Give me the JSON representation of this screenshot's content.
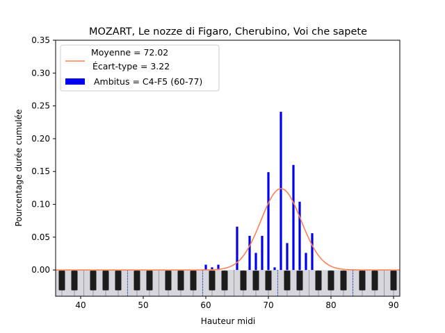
{
  "chart_data": {
    "type": "bar",
    "title": "MOZART, Le nozze di Figaro, Cherubino, Voi che sapete",
    "xlabel": "Hauteur midi",
    "ylabel": "Pourcentage durée cumulée",
    "xlim": [
      36,
      91
    ],
    "ylim": [
      -0.04,
      0.35
    ],
    "xticks": [
      40,
      50,
      60,
      70,
      80,
      90
    ],
    "yticks": [
      0.0,
      0.05,
      0.1,
      0.15,
      0.2,
      0.25,
      0.3,
      0.35
    ],
    "ytick_labels": [
      "0.00",
      "0.05",
      "0.10",
      "0.15",
      "0.20",
      "0.25",
      "0.30",
      "0.35"
    ],
    "grid": false,
    "legend_position": "top-left",
    "bar_color": "#0000ee",
    "curve_color": "#ff7f50",
    "bars": [
      {
        "pitch": 60,
        "value": 0.008
      },
      {
        "pitch": 61,
        "value": 0.004
      },
      {
        "pitch": 62,
        "value": 0.008
      },
      {
        "pitch": 65,
        "value": 0.066
      },
      {
        "pitch": 67,
        "value": 0.052
      },
      {
        "pitch": 68,
        "value": 0.026
      },
      {
        "pitch": 69,
        "value": 0.052
      },
      {
        "pitch": 70,
        "value": 0.149
      },
      {
        "pitch": 71,
        "value": 0.004
      },
      {
        "pitch": 72,
        "value": 0.241
      },
      {
        "pitch": 73,
        "value": 0.041
      },
      {
        "pitch": 74,
        "value": 0.16
      },
      {
        "pitch": 75,
        "value": 0.104
      },
      {
        "pitch": 76,
        "value": 0.026
      },
      {
        "pitch": 77,
        "value": 0.056
      }
    ],
    "gaussian": {
      "mean": 72.02,
      "std": 3.22,
      "peak": 0.124
    },
    "keyboard_markers": [
      47.5,
      59.5,
      71.5,
      83.5
    ],
    "legend": {
      "curve_label_line1": "Moyenne = 72.02",
      "curve_label_line2": "Écart-type = 3.22",
      "bar_label": "Ambitus = C4-F5 (60-77)"
    }
  }
}
